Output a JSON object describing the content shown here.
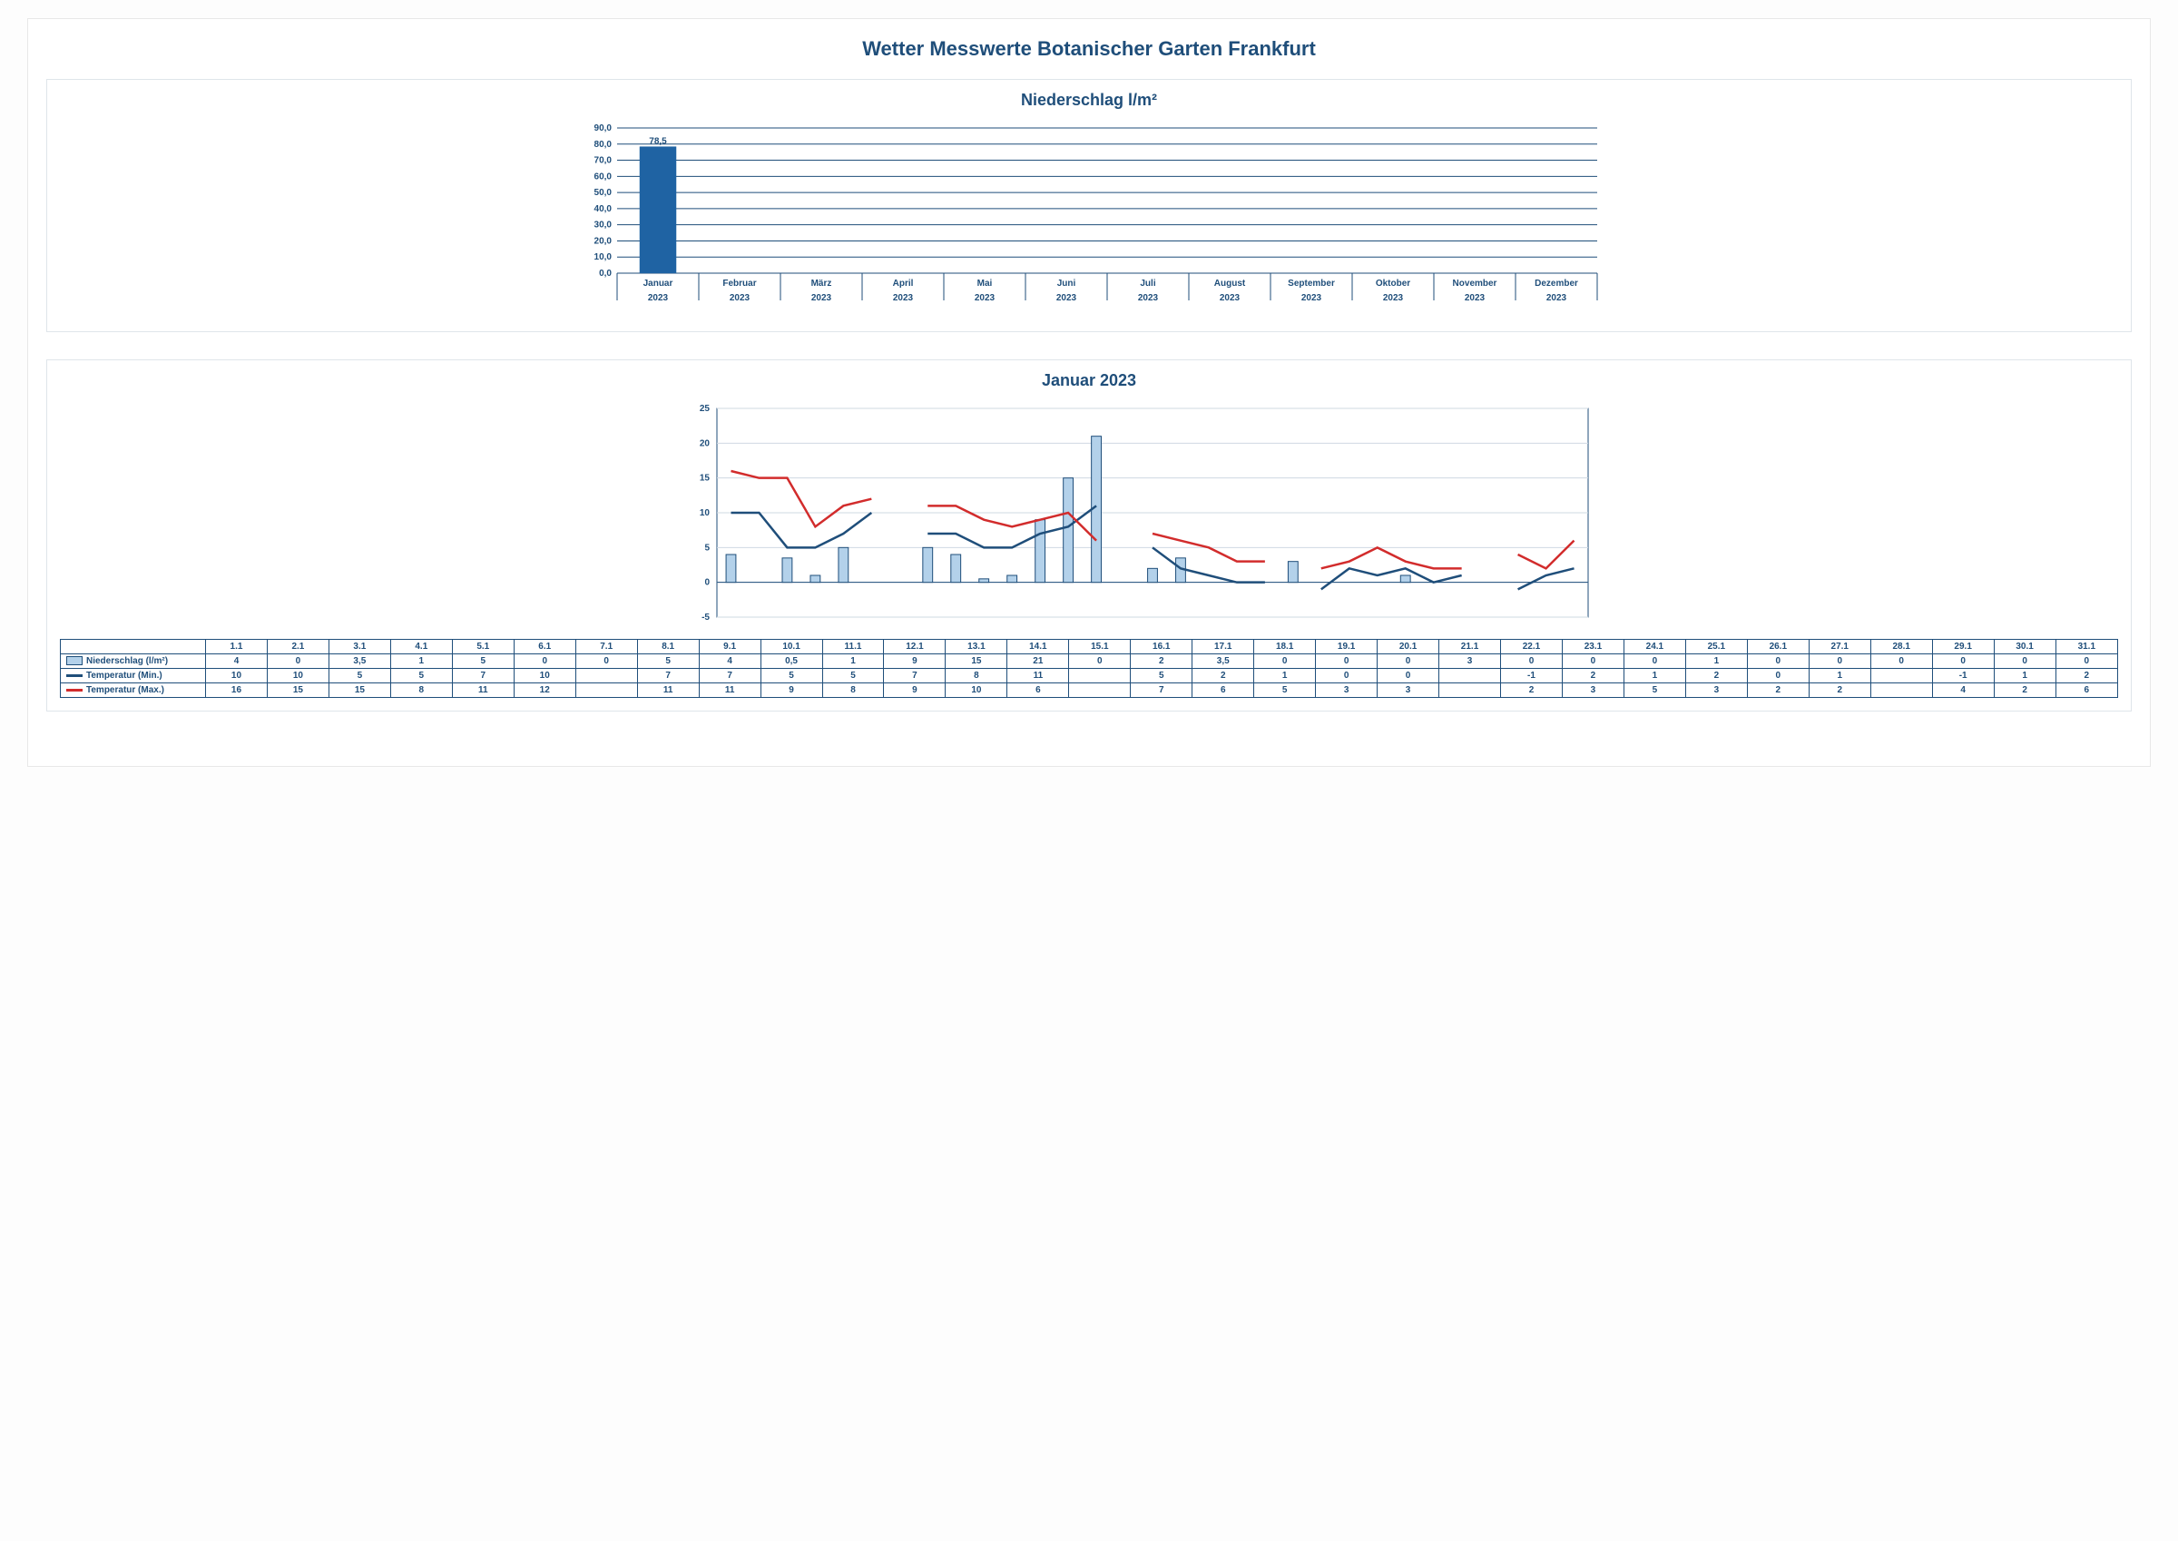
{
  "page_title": "Wetter Messwerte Botanischer Garten Frankfurt",
  "bar_chart": {
    "title": "Niederschlag l/m²",
    "months": [
      "Januar",
      "Februar",
      "März",
      "April",
      "Mai",
      "Juni",
      "Juli",
      "August",
      "September",
      "Oktober",
      "November",
      "Dezember"
    ],
    "year": "2023",
    "values": [
      78.5,
      null,
      null,
      null,
      null,
      null,
      null,
      null,
      null,
      null,
      null,
      null
    ],
    "value_labels": [
      "78,5",
      "",
      "",
      "",
      "",
      "",
      "",
      "",
      "",
      "",
      "",
      ""
    ],
    "y_min": 0,
    "y_max": 90,
    "y_step": 10,
    "y_tick_format": ",0",
    "bar_color": "#1f63a3",
    "grid_color": "#1f4e7a",
    "background": "#ffffff"
  },
  "combo_chart": {
    "title": "Januar 2023",
    "days": [
      "1.1",
      "2.1",
      "3.1",
      "4.1",
      "5.1",
      "6.1",
      "7.1",
      "8.1",
      "9.1",
      "10.1",
      "11.1",
      "12.1",
      "13.1",
      "14.1",
      "15.1",
      "16.1",
      "17.1",
      "18.1",
      "19.1",
      "20.1",
      "21.1",
      "22.1",
      "23.1",
      "24.1",
      "25.1",
      "26.1",
      "27.1",
      "28.1",
      "29.1",
      "30.1",
      "31.1"
    ],
    "precip": [
      "4",
      "0",
      "3,5",
      "1",
      "5",
      "0",
      "0",
      "5",
      "4",
      "0,5",
      "1",
      "9",
      "15",
      "21",
      "0",
      "2",
      "3,5",
      "0",
      "0",
      "0",
      "3",
      "0",
      "0",
      "0",
      "1",
      "0",
      "0",
      "0",
      "0",
      "0",
      "0"
    ],
    "precip_num": [
      4,
      0,
      3.5,
      1,
      5,
      0,
      0,
      5,
      4,
      0.5,
      1,
      9,
      15,
      21,
      0,
      2,
      3.5,
      0,
      0,
      0,
      3,
      0,
      0,
      0,
      1,
      0,
      0,
      0,
      0,
      0,
      0
    ],
    "tmin": [
      "10",
      "10",
      "5",
      "5",
      "7",
      "10",
      "",
      "7",
      "7",
      "5",
      "5",
      "7",
      "8",
      "11",
      "",
      "5",
      "2",
      "1",
      "0",
      "0",
      "",
      "-1",
      "2",
      "1",
      "2",
      "0",
      "1",
      "",
      "-1",
      "1",
      "2"
    ],
    "tmin_num": [
      10,
      10,
      5,
      5,
      7,
      10,
      null,
      7,
      7,
      5,
      5,
      7,
      8,
      11,
      null,
      5,
      2,
      1,
      0,
      0,
      null,
      -1,
      2,
      1,
      2,
      0,
      1,
      null,
      -1,
      1,
      2
    ],
    "tmax": [
      "16",
      "15",
      "15",
      "8",
      "11",
      "12",
      "",
      "11",
      "11",
      "9",
      "8",
      "9",
      "10",
      "6",
      "",
      "7",
      "6",
      "5",
      "3",
      "3",
      "",
      "2",
      "3",
      "5",
      "3",
      "2",
      "2",
      "",
      "4",
      "2",
      "6"
    ],
    "tmax_num": [
      16,
      15,
      15,
      8,
      11,
      12,
      null,
      11,
      11,
      9,
      8,
      9,
      10,
      6,
      null,
      7,
      6,
      5,
      3,
      3,
      null,
      2,
      3,
      5,
      3,
      2,
      2,
      null,
      4,
      2,
      6
    ],
    "y_min": -5,
    "y_max": 25,
    "y_step": 5,
    "bar_color": "#b3d1ea",
    "bar_border": "#1f4e7a",
    "line_min_color": "#1f4e7a",
    "line_max_color": "#d22c2c",
    "grid_color": "#cfd8e2",
    "row_labels": {
      "precip": "Niederschlag (l/m²)",
      "tmin": "Temperatur (Min.)",
      "tmax": "Temperatur (Max.)"
    }
  }
}
